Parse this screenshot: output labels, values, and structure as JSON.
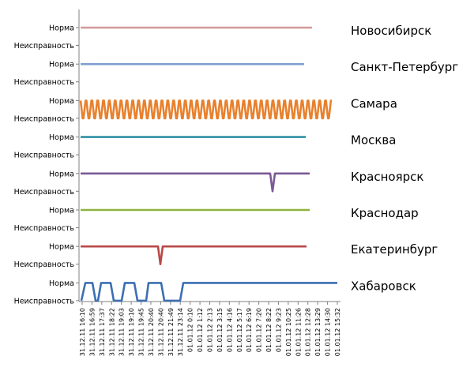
{
  "chart_data": {
    "type": "line",
    "y_states": [
      "Норма",
      "Неисправность"
    ],
    "x": [
      "31.12.11 16:10",
      "31.12.11 16:59",
      "31.12.11 17:37",
      "31.12.11 18:22",
      "31.12.11 19:03",
      "31.12.11 19:10",
      "31.12.11 19:45",
      "31.12.11 20:40",
      "31.12.11 20:40",
      "31.12.11 21:49",
      "31.12.11 23:14",
      "01.01.12 0:10",
      "01.01.12 1:12",
      "01.01.12 2:13",
      "01.01.12 3:15",
      "01.01.12 4:16",
      "01.01.12 5:17",
      "01.01.12 6:19",
      "01.01.12 7:20",
      "01.01.12 8:22",
      "01.01.12 9:23",
      "01.01.12 10:25",
      "01.01.12 11:26",
      "01.01.12 12:28",
      "01.01.12 13:29",
      "01.01.12 14:30",
      "01.01.12 15:32"
    ],
    "series": [
      {
        "name": "Новосибирск",
        "color": "#d39a98",
        "values": [
          1,
          1,
          1,
          1,
          1,
          1,
          1,
          1,
          1,
          1,
          1,
          1,
          1,
          1,
          1,
          1,
          1,
          1,
          1,
          1,
          1,
          1,
          1,
          1,
          1,
          1,
          1
        ]
      },
      {
        "name": "Санкт-Петербург",
        "color": "#7f9fd0",
        "values": [
          1,
          1,
          1,
          1,
          1,
          1,
          1,
          1,
          1,
          1,
          1,
          1,
          1,
          1,
          1,
          1,
          1,
          1,
          1,
          1,
          1,
          1,
          1,
          1,
          1,
          1,
          1
        ]
      },
      {
        "name": "Самара",
        "color": "#e8812e",
        "values": [
          1,
          0,
          1,
          0,
          1,
          0,
          1,
          0,
          1,
          0,
          1,
          0,
          1,
          0,
          1,
          0,
          1,
          0,
          1,
          0,
          1,
          0,
          1,
          0,
          1,
          0,
          1
        ]
      },
      {
        "name": "Москва",
        "color": "#2f8fa5",
        "values": [
          1,
          1,
          1,
          1,
          1,
          1,
          1,
          1,
          1,
          1,
          1,
          1,
          1,
          1,
          1,
          1,
          1,
          1,
          1,
          1,
          1,
          1,
          1,
          1,
          1,
          1,
          1
        ]
      },
      {
        "name": "Красноярск",
        "color": "#7b5a95",
        "values": [
          1,
          1,
          1,
          1,
          1,
          1,
          1,
          1,
          1,
          1,
          1,
          1,
          1,
          1,
          1,
          1,
          1,
          1,
          1,
          1,
          0,
          1,
          1,
          1,
          1,
          1,
          1
        ]
      },
      {
        "name": "Краснодар",
        "color": "#8db43f",
        "values": [
          1,
          1,
          1,
          1,
          1,
          1,
          1,
          1,
          1,
          1,
          1,
          1,
          1,
          1,
          1,
          1,
          1,
          1,
          1,
          1,
          1,
          1,
          1,
          1,
          1,
          1,
          1
        ]
      },
      {
        "name": "Екатеринбург",
        "color": "#b84a48",
        "values": [
          1,
          1,
          1,
          1,
          1,
          1,
          1,
          0,
          1,
          1,
          1,
          1,
          1,
          1,
          1,
          1,
          1,
          1,
          1,
          1,
          1,
          1,
          1,
          1,
          1,
          1,
          1
        ]
      },
      {
        "name": "Хабаровск",
        "color": "#3d6fb2",
        "values": [
          1,
          1,
          0,
          1,
          0,
          1,
          0,
          1,
          0,
          0,
          1,
          1,
          1,
          1,
          1,
          1,
          1,
          1,
          1,
          1,
          1,
          1,
          1,
          1,
          1,
          1,
          1
        ]
      }
    ]
  }
}
